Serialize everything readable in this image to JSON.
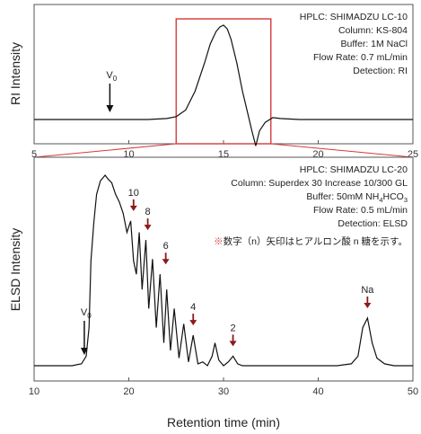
{
  "chart_data": [
    {
      "type": "line",
      "ylabel": "RI Intensity",
      "xlim": [
        5,
        25
      ],
      "x_ticks": [
        5,
        10,
        15,
        20,
        25
      ],
      "highlight_range": [
        12.5,
        17.5
      ],
      "annotations": [
        "HPLC: SHIMADZU LC-10",
        "Column: KS-804",
        "Buffer: 1M NaCl",
        "Flow Rate: 0.7 mL/min",
        "Detection: RI"
      ],
      "markers": [
        {
          "label": "V",
          "sub": "0",
          "x": 9.0
        }
      ],
      "series": [
        {
          "x": [
            5,
            6,
            7,
            8,
            9,
            10,
            11,
            12,
            12.5,
            13,
            13.5,
            14,
            14.3,
            14.6,
            14.8,
            15,
            15.2,
            15.4,
            15.7,
            16,
            16.3,
            16.5,
            16.7,
            16.9,
            17.2,
            17.6,
            18,
            19,
            20,
            21,
            22,
            23,
            24,
            25
          ],
          "y": [
            0,
            0,
            0,
            0,
            0,
            0,
            0,
            0.01,
            0.03,
            0.1,
            0.3,
            0.6,
            0.8,
            0.93,
            0.98,
            1.0,
            0.96,
            0.85,
            0.6,
            0.3,
            0.05,
            -0.12,
            -0.28,
            -0.12,
            -0.03,
            0.02,
            0.01,
            0,
            0,
            0,
            0,
            0,
            0,
            0
          ]
        }
      ]
    },
    {
      "type": "line",
      "xlabel": "Retention time (min)",
      "ylabel": "ELSD Intensity",
      "xlim": [
        10,
        50
      ],
      "x_ticks": [
        10,
        20,
        30,
        40,
        50
      ],
      "annotations": [
        "HPLC: SHIMADZU LC-20",
        "Column: Superdex 30 Increase 10/300 GL",
        "Buffer: 50mM NH",
        "Flow Rate: 0.5 mL/min",
        "Detection: ELSD"
      ],
      "buffer_sub": "4",
      "buffer_tail": "HCO",
      "buffer_sub2": "3",
      "note": "※数字（n）矢印はヒアルロン酸 n 糖を示す。",
      "markers": [
        {
          "label": "V",
          "sub": "0",
          "x": 15.3
        }
      ],
      "peak_labels": [
        {
          "label": "10",
          "x": 20.5
        },
        {
          "label": "8",
          "x": 22.0
        },
        {
          "label": "6",
          "x": 23.9
        },
        {
          "label": "4",
          "x": 26.8
        },
        {
          "label": "2",
          "x": 31.0
        },
        {
          "label": "Na",
          "x": 45.2
        }
      ],
      "series": [
        {
          "x": [
            10,
            12,
            14,
            15,
            15.5,
            15.8,
            16.0,
            16.3,
            16.6,
            17.0,
            17.5,
            17.8,
            18.2,
            18.6,
            19.0,
            19.4,
            19.8,
            20.2,
            20.5,
            20.8,
            21.1,
            21.4,
            21.8,
            22.1,
            22.5,
            22.9,
            23.3,
            23.7,
            24.0,
            24.4,
            24.8,
            25.3,
            25.8,
            26.3,
            26.8,
            27.3,
            27.8,
            28.3,
            28.8,
            29.1,
            29.5,
            30.0,
            30.5,
            31.0,
            31.5,
            32.0,
            34,
            36,
            38,
            40,
            42,
            43.5,
            44.2,
            44.7,
            45.2,
            45.7,
            46.2,
            47,
            48,
            50
          ],
          "y": [
            0,
            0,
            0,
            0.01,
            0.05,
            0.2,
            0.55,
            0.75,
            0.9,
            0.97,
            1.0,
            0.98,
            0.96,
            0.9,
            0.86,
            0.8,
            0.7,
            0.76,
            0.55,
            0.48,
            0.7,
            0.4,
            0.66,
            0.3,
            0.56,
            0.2,
            0.48,
            0.12,
            0.4,
            0.08,
            0.3,
            0.04,
            0.22,
            0.02,
            0.16,
            0.01,
            0.02,
            0.0,
            0.05,
            0.12,
            0.03,
            0.0,
            0.02,
            0.05,
            0.01,
            0.0,
            0,
            0,
            0,
            0,
            0,
            0.01,
            0.05,
            0.2,
            0.25,
            0.12,
            0.04,
            0.01,
            0,
            0
          ]
        }
      ]
    }
  ]
}
